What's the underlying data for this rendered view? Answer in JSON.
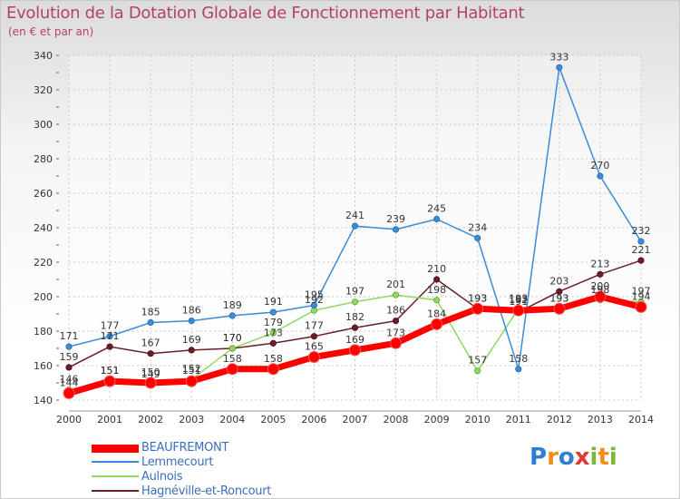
{
  "header": {
    "title": "Evolution de la Dotation Globale de Fonctionnement par Habitant",
    "subtitle": "(en € et par an)"
  },
  "logo": {
    "text": "Proxiti",
    "letters": [
      "P",
      "r",
      "o",
      "x",
      "i",
      "t",
      "i"
    ],
    "colors": [
      "#2f7fd1",
      "#f28c1c",
      "#2f7fd1",
      "#e03a2f",
      "#7ab83b",
      "#f28c1c",
      "#7ab83b"
    ]
  },
  "chart_data": {
    "type": "line",
    "title": "Evolution de la Dotation Globale de Fonctionnement par Habitant",
    "subtitle": "(en € et par an)",
    "xlabel": "",
    "ylabel": "",
    "x": [
      "2000",
      "2001",
      "2002",
      "2003",
      "2004",
      "2005",
      "2006",
      "2007",
      "2008",
      "2009",
      "2010",
      "2011",
      "2012",
      "2013",
      "2014"
    ],
    "ylim": [
      140,
      340
    ],
    "yticks": [
      140,
      160,
      180,
      200,
      220,
      240,
      260,
      280,
      300,
      320,
      340
    ],
    "grid": true,
    "legend_position": "bottom-left",
    "series": [
      {
        "name": "BEAUFREMONT",
        "color": "#ff0000",
        "values": [
          144,
          151,
          150,
          151,
          158,
          158,
          165,
          169,
          173,
          184,
          193,
          192,
          193,
          200,
          194
        ]
      },
      {
        "name": "Lemmecourt",
        "color": "#3b8bd6",
        "values": [
          171,
          177,
          185,
          186,
          189,
          191,
          195,
          241,
          239,
          245,
          234,
          158,
          333,
          270,
          232
        ]
      },
      {
        "name": "Aulnois",
        "color": "#90d860",
        "values": [
          146,
          151,
          149,
          152,
          170,
          179,
          192,
          197,
          201,
          198,
          157,
          193,
          193,
          198,
          197
        ]
      },
      {
        "name": "Hagnéville-et-Roncourt",
        "color": "#6b1e28",
        "values": [
          159,
          171,
          167,
          169,
          170,
          173,
          177,
          182,
          186,
          210,
          193,
          191,
          203,
          213,
          221
        ]
      }
    ]
  }
}
